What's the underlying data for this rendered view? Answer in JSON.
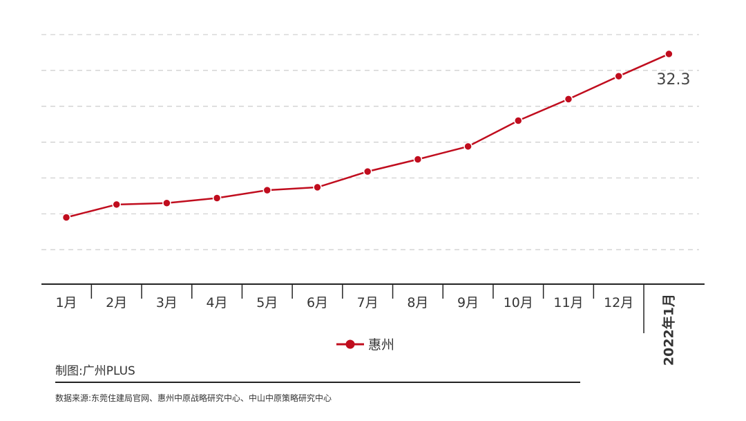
{
  "chart_data": {
    "type": "line",
    "categories": [
      "1月",
      "2月",
      "3月",
      "4月",
      "5月",
      "6月",
      "7月",
      "8月",
      "9月",
      "10月",
      "11月",
      "12月",
      "2022年1月"
    ],
    "series": [
      {
        "name": "惠州",
        "color": "#c00d1e",
        "values": [
          9.5,
          11.3,
          11.5,
          12.2,
          13.3,
          13.7,
          15.9,
          17.6,
          19.4,
          23.0,
          26.0,
          29.2,
          32.3
        ]
      }
    ],
    "data_labels": [
      {
        "index": 12,
        "text": "32.3"
      }
    ],
    "ylim": [
      0,
      35
    ],
    "grid_values": [
      5,
      10,
      15,
      20,
      25,
      30,
      35
    ],
    "grid": true,
    "legend": "bottom-center",
    "xlabel": "",
    "ylabel": ""
  },
  "credit": "制图:广州PLUS",
  "source": "数据来源:东莞住建局官网、惠州中原战略研究中心、中山中原策略研究中心"
}
